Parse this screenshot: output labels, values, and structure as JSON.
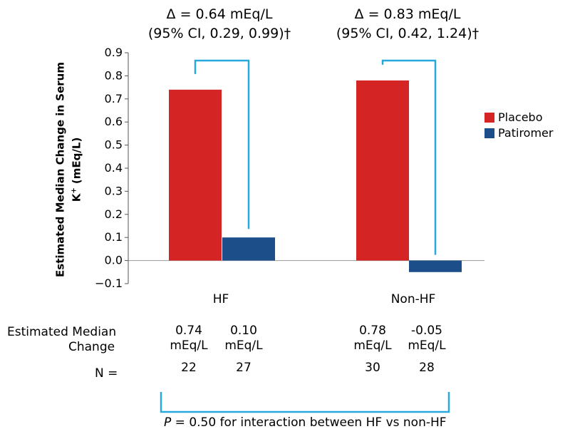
{
  "chart_data": {
    "type": "bar",
    "categories": [
      "HF",
      "Non-HF"
    ],
    "series": [
      {
        "name": "Placebo",
        "values": [
          0.74,
          0.78
        ],
        "color": "#d42424"
      },
      {
        "name": "Patiromer",
        "values": [
          0.1,
          -0.05
        ],
        "color": "#1c4f8a"
      }
    ],
    "ylabel_line1": "Estimated Median Change in Serum",
    "ylabel_line2_base": "K",
    "ylabel_line2_sup": "+",
    "ylabel_line2_rest": " (mEq/L)",
    "ylim": [
      -0.1,
      0.9
    ],
    "yticks": [
      "0.9",
      "0.8",
      "0.7",
      "0.6",
      "0.5",
      "0.4",
      "0.3",
      "0.2",
      "0.1",
      "0.0",
      "−0.1"
    ],
    "legend_position": "right",
    "bracket_color": "#29a8e0",
    "annotations": {
      "hf_delta": "Δ = 0.64 mEq/L",
      "hf_ci": "(95% CI, 0.29, 0.99)†",
      "nonhf_delta": "Δ = 0.83 mEq/L",
      "nonhf_ci": "(95% CI, 0.42, 1.24)†"
    }
  },
  "table": {
    "row1_label_line1": "Estimated Median",
    "row1_label_line2": "Change",
    "row2_label": "N =",
    "cells": [
      {
        "value": "0.74",
        "unit": "mEq/L",
        "n": "22"
      },
      {
        "value": "0.10",
        "unit": "mEq/L",
        "n": "27"
      },
      {
        "value": "0.78",
        "unit": "mEq/L",
        "n": "30"
      },
      {
        "value": "-0.05",
        "unit": "mEq/L",
        "n": "28"
      }
    ]
  },
  "interaction": {
    "p_label": "P",
    "text": " = 0.50 for interaction between HF vs non-HF"
  }
}
